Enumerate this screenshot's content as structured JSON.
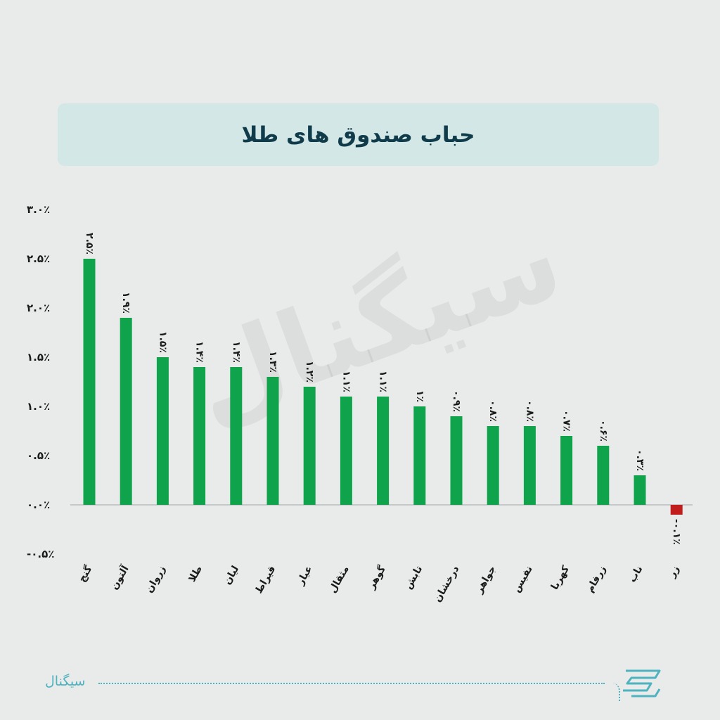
{
  "title": "حباب صندوق های طلا",
  "watermark": "سیگنال",
  "footer": {
    "brand": "سیگنال"
  },
  "colors": {
    "positive": "#0fa34b",
    "negative": "#c21d1d",
    "title_bg": "#d3e7e7",
    "accent": "#4fb3bf"
  },
  "icons": {
    "logo": "signal-logo-icon"
  },
  "chart_data": {
    "type": "bar",
    "title": "حباب صندوق های طلا",
    "xlabel": "",
    "ylabel": "",
    "ylim": [
      -0.5,
      3.0
    ],
    "yticks": [
      {
        "value": 3.0,
        "label": "۳.۰٪"
      },
      {
        "value": 2.5,
        "label": "۲.۵٪"
      },
      {
        "value": 2.0,
        "label": "۲.۰٪"
      },
      {
        "value": 1.5,
        "label": "۱.۵٪"
      },
      {
        "value": 1.0,
        "label": "۱.۰٪"
      },
      {
        "value": 0.5,
        "label": "۰.۵٪"
      },
      {
        "value": 0.0,
        "label": "۰.۰٪"
      },
      {
        "value": -0.5,
        "label": "-۰.۵٪"
      }
    ],
    "grid": false,
    "categories": [
      "گنج",
      "آلتون",
      "زروان",
      "طلا",
      "لیان",
      "قیراط",
      "عیار",
      "مثقال",
      "گوهر",
      "تابش",
      "درخشان",
      "جواهر",
      "نفیس",
      "کهربا",
      "زرفام",
      "ناب",
      "زر"
    ],
    "values": [
      2.5,
      1.9,
      1.5,
      1.4,
      1.4,
      1.3,
      1.2,
      1.1,
      1.1,
      1.0,
      0.9,
      0.8,
      0.8,
      0.7,
      0.6,
      0.3,
      -0.1
    ],
    "value_labels": [
      "۲.۵٪",
      "۱.۹٪",
      "۱.۵٪",
      "۱.۴٪",
      "۱.۴٪",
      "۱.۳٪",
      "۱.۲٪",
      "۱.۱٪",
      "۱.۱٪",
      "۱٪",
      "۰.۹٪",
      "۰.۸٪",
      "۰.۸٪",
      "۰.۷٪",
      "۰.۶٪",
      "۰.۳٪",
      "-۰.۱٪"
    ]
  }
}
